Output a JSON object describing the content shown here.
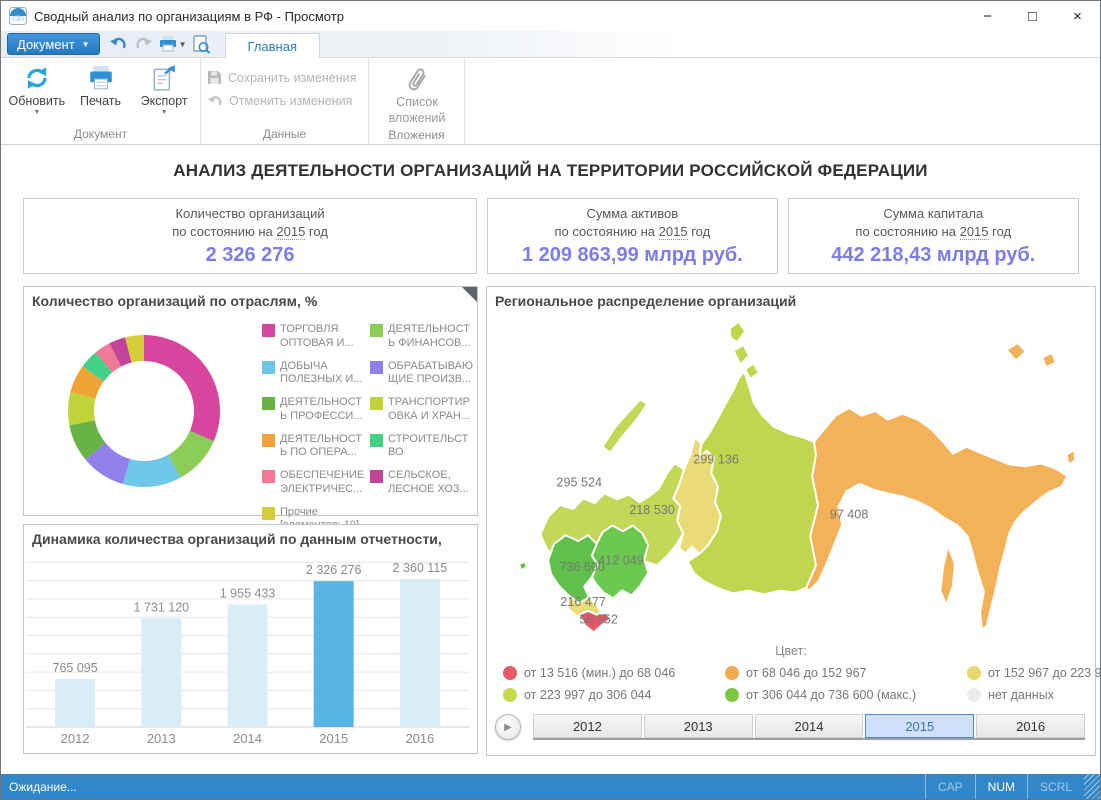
{
  "window": {
    "title": "Сводный анализ по организациям в РФ - Просмотр",
    "controls": {
      "minimize": "−",
      "maximize": "□",
      "close": "×"
    }
  },
  "toolbar": {
    "document_button": "Документ",
    "active_tab": "Главная"
  },
  "ribbon": {
    "refresh_label": "Обновить",
    "print_label": "Печать",
    "export_label": "Экспорт",
    "save_label": "Сохранить изменения",
    "revert_label": "Отменить изменения",
    "attachments_label": "Список\nвложений",
    "groups": {
      "document": "Документ",
      "data": "Данные",
      "attachments": "Вложения"
    }
  },
  "page": {
    "title": "АНАЛИЗ ДЕЯТЕЛЬНОСТИ ОРГАНИЗАЦИЙ НА ТЕРРИТОРИИ РОССИЙСКОЙ ФЕДЕРАЦИИ"
  },
  "kpis": [
    {
      "title": "Количество организаций",
      "prefix": "по состоянию на",
      "year": "2015",
      "suffix": "год",
      "value": "2 326 276"
    },
    {
      "title": "Сумма активов",
      "prefix": "по состоянию на",
      "year": "2015",
      "suffix": "год",
      "value": "1 209 863,99 млрд руб."
    },
    {
      "title": "Сумма капитала",
      "prefix": "по состоянию на",
      "year": "2015",
      "suffix": "год",
      "value": "442 218,43 млрд руб."
    }
  ],
  "chart_data": [
    {
      "type": "pie",
      "title": "Количество организаций по отраслям, %",
      "legend_position": "right",
      "slices": [
        {
          "label": "ТОРГОВЛЯ\nОПТОВАЯ И...",
          "pct": 31.5,
          "color": "#d8459e"
        },
        {
          "label": "ДЕЯТЕЛЬНОСТ\nЬ ФИНАНСОВ...",
          "pct": 10.5,
          "color": "#8ccd57"
        },
        {
          "label": "ДОБЫЧА\nПОЛЕЗНЫХ И...",
          "pct": 12.5,
          "color": "#6ec6e8"
        },
        {
          "label": "ОБРАБАТЫВАЮ\nЩИЕ ПРОИЗВ...",
          "pct": 9.5,
          "color": "#9180ea"
        },
        {
          "label": "ДЕЯТЕЛЬНОСТ\nЬ ПРОФЕССИ...",
          "pct": 8,
          "color": "#67b346"
        },
        {
          "label": "ТРАНСПОРТИР\nОВКА И ХРАН...",
          "pct": 7,
          "color": "#c0d338"
        },
        {
          "label": "ДЕЯТЕЛЬНОСТ\nЬ ПО ОПЕРА...",
          "pct": 6,
          "color": "#f0a437"
        },
        {
          "label": "СТРОИТЕЛЬСТ\nВО",
          "pct": 4,
          "color": "#41d286"
        },
        {
          "label": "ОБЕСПЕЧЕНИЕ\nЭЛЕКТРИЧЕС...",
          "pct": 3.5,
          "color": "#f07a95"
        },
        {
          "label": "СЕЛЬСКОЕ,\nЛЕСНОЕ ХОЗ...",
          "pct": 3.5,
          "color": "#c2439a"
        },
        {
          "label": "Прочие\n[элементов: 10]",
          "pct": 4,
          "color": "#d6ce39"
        }
      ]
    },
    {
      "type": "bar",
      "title": "Динамика количества организаций по данным отчетности,",
      "categories": [
        "2012",
        "2013",
        "2014",
        "2015",
        "2016"
      ],
      "values": [
        765095,
        1731120,
        1955433,
        2326276,
        2360115
      ],
      "value_labels": [
        "765 095",
        "1 731 120",
        "1 955 433",
        "2 326 276",
        "2 360 115"
      ],
      "highlight_index": 3,
      "bar_color": "#d9edf8",
      "highlight_color": "#58b6e4",
      "ylim": [
        0,
        2400000
      ],
      "grid": "horizontal"
    },
    {
      "type": "map",
      "title": "Региональное распределение организаций",
      "color_caption": "Цвет:",
      "regions": [
        {
          "value": "295 524",
          "color": "#c4d757"
        },
        {
          "value": "218 530",
          "color": "#e9dc77"
        },
        {
          "value": "299 136",
          "color": "#c1d54e"
        },
        {
          "value": "97 408",
          "color": "#f3b158"
        },
        {
          "value": "412 049",
          "color": "#6ac94e"
        },
        {
          "value": "736 600",
          "color": "#5fc04a"
        },
        {
          "value": "216 477",
          "color": "#e9dc77"
        },
        {
          "value": "58 552",
          "color": "#e65766"
        }
      ],
      "legend": [
        {
          "label": "от 13 516 (мин.) до 68 046",
          "color": "#e8596a"
        },
        {
          "label": "от 68 046 до 152 967",
          "color": "#f2a94f"
        },
        {
          "label": "от 152 967 до 223 997",
          "color": "#e8d96b"
        },
        {
          "label": "от 223 997 до 306 044",
          "color": "#c6d94e"
        },
        {
          "label": "от 306 044 до 736 600 (макс.)",
          "color": "#7cc845"
        },
        {
          "label": "нет данных",
          "color": "#ededed"
        }
      ],
      "years": [
        "2012",
        "2013",
        "2014",
        "2015",
        "2016"
      ],
      "selected_year": "2015"
    }
  ],
  "status": {
    "text": "Ожидание...",
    "indicators": [
      {
        "label": "CAP",
        "active": false
      },
      {
        "label": "NUM",
        "active": true
      },
      {
        "label": "SCRL",
        "active": false
      }
    ]
  }
}
